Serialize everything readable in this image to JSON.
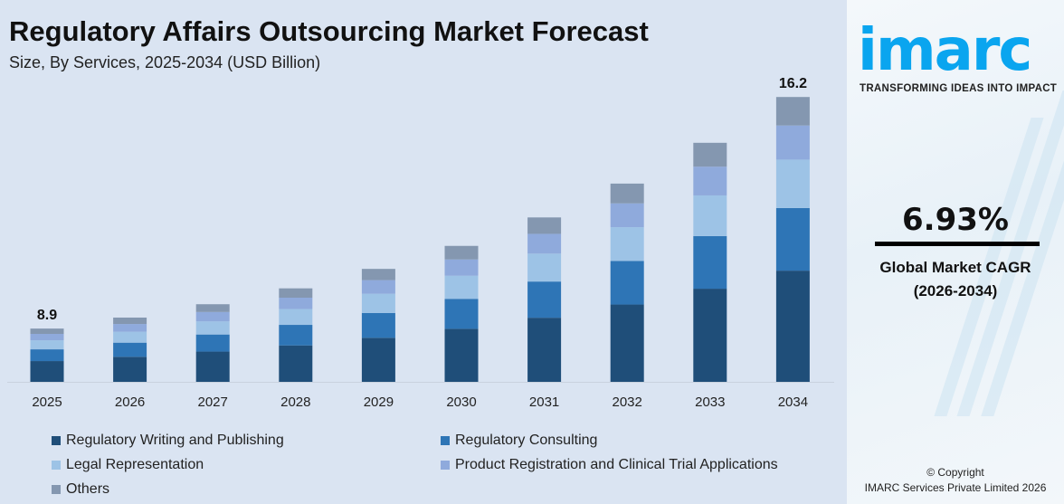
{
  "header": {
    "title": "Regulatory Affairs Outsourcing Market Forecast",
    "subtitle": "Size, By Services, 2025-2034 (USD Billion)"
  },
  "chart_data": {
    "type": "bar",
    "stacked": true,
    "title": "Regulatory Affairs Outsourcing Market Forecast",
    "subtitle": "Size, By Services, 2025-2034 (USD Billion)",
    "categories": [
      "2025",
      "2026",
      "2027",
      "2028",
      "2029",
      "2030",
      "2031",
      "2032",
      "2033",
      "2034"
    ],
    "totals": [
      8.9,
      9.52,
      10.18,
      10.88,
      11.64,
      12.44,
      13.31,
      14.23,
      15.21,
      16.2
    ],
    "data_labels": {
      "2025": "8.9",
      "2034": "16.2"
    },
    "series": [
      {
        "name": "Regulatory Writing and Publishing",
        "color": "#1f4e79",
        "values": [
          3.47,
          3.71,
          3.97,
          4.24,
          4.54,
          4.85,
          5.19,
          5.55,
          5.93,
          6.32
        ]
      },
      {
        "name": "Regulatory Consulting",
        "color": "#2e75b6",
        "values": [
          1.96,
          2.09,
          2.24,
          2.39,
          2.56,
          2.74,
          2.93,
          3.13,
          3.35,
          3.56
        ]
      },
      {
        "name": "Legal Representation",
        "color": "#9dc3e6",
        "values": [
          1.51,
          1.62,
          1.73,
          1.85,
          1.98,
          2.11,
          2.26,
          2.42,
          2.59,
          2.75
        ]
      },
      {
        "name": "Product Registration and Clinical Trial Applications",
        "color": "#8faadc",
        "values": [
          1.07,
          1.14,
          1.22,
          1.31,
          1.4,
          1.49,
          1.6,
          1.71,
          1.83,
          1.94
        ]
      },
      {
        "name": "Others",
        "color": "#8497b0",
        "values": [
          0.89,
          0.95,
          1.02,
          1.09,
          1.16,
          1.24,
          1.33,
          1.42,
          1.52,
          1.62
        ]
      }
    ],
    "grid": false,
    "legend": "bottom",
    "xlabel": "",
    "ylabel": ""
  },
  "sidebar": {
    "logo": "imarc",
    "tagline": "TRANSFORMING IDEAS INTO IMPACT",
    "cagr_value": "6.93%",
    "cagr_label": "Global Market CAGR",
    "cagr_period": "(2026-2034)",
    "copyright": "© Copyright",
    "company": "IMARC Services Private Limited 2026"
  }
}
